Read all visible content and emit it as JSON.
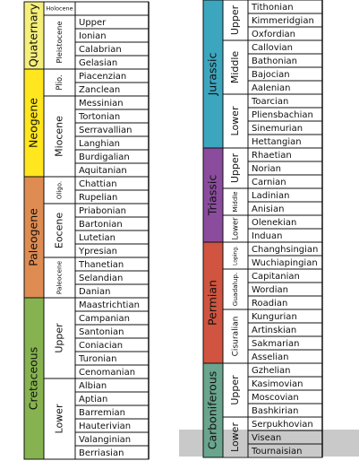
{
  "tables": [
    {
      "periods": [
        {
          "name": "Quaternary",
          "color": "#f5ef7a",
          "epochs": [
            {
              "name": "Holocene",
              "stages": []
            },
            {
              "name": "Pleistocene",
              "stages": [
                "Upper",
                "Ionian",
                "Calabrian",
                "Gelasian"
              ]
            }
          ]
        },
        {
          "name": "Neogene",
          "color": "#ffe61e",
          "epochs": [
            {
              "name": "Plio.",
              "stages": [
                "Piacenzian",
                "Zanclean"
              ]
            },
            {
              "name": "Miocene",
              "stages": [
                "Messinian",
                "Tortonian",
                "Serravallian",
                "Langhian",
                "Burdigalian",
                "Aquitanian"
              ]
            }
          ]
        },
        {
          "name": "Paleogene",
          "color": "#df8c52",
          "epochs": [
            {
              "name": "Oligo.",
              "stages": [
                "Chattian",
                "Rupelian"
              ]
            },
            {
              "name": "Eocene",
              "stages": [
                "Priabonian",
                "Bartonian",
                "Lutetian",
                "Ypresian"
              ]
            },
            {
              "name": "Paleocene",
              "stages": [
                "Thanetian",
                "Selandian",
                "Danian"
              ]
            }
          ]
        },
        {
          "name": "Cretaceous",
          "color": "#86b34f",
          "epochs": [
            {
              "name": "Upper",
              "stages": [
                "Maastrichtian",
                "Campanian",
                "Santonian",
                "Coniacian",
                "Turonian",
                "Cenomanian"
              ]
            },
            {
              "name": "Lower",
              "stages": [
                "Albian",
                "Aptian",
                "Barremian",
                "Hauterivian",
                "Valanginian",
                "Berriasian"
              ]
            }
          ]
        }
      ]
    },
    {
      "periods": [
        {
          "name": "Jurassic",
          "color": "#3da6bf",
          "epochs": [
            {
              "name": "Upper",
              "stages": [
                "Tithonian",
                "Kimmeridgian",
                "Oxfordian"
              ]
            },
            {
              "name": "Middle",
              "stages": [
                "Callovian",
                "Bathonian",
                "Bajocian",
                "Aalenian"
              ]
            },
            {
              "name": "Lower",
              "stages": [
                "Toarcian",
                "Pliensbachian",
                "Sinemurian",
                "Hettangian"
              ]
            }
          ]
        },
        {
          "name": "Triassic",
          "color": "#8b4c9e",
          "epochs": [
            {
              "name": "Upper",
              "stages": [
                "Rhaetian",
                "Norian",
                "Carnian"
              ]
            },
            {
              "name": "Middle",
              "stages": [
                "Ladinian",
                "Anisian"
              ]
            },
            {
              "name": "Lower",
              "stages": [
                "Olenekian",
                "Induan"
              ]
            }
          ]
        },
        {
          "name": "Permian",
          "color": "#d0543f",
          "epochs": [
            {
              "name": "Loping.",
              "stages": [
                "Changhsingian",
                "Wuchiapingian"
              ]
            },
            {
              "name": "Guadalup.",
              "stages": [
                "Capitanian",
                "Wordian",
                "Roadian"
              ]
            },
            {
              "name": "Cisuralian",
              "stages": [
                "Kungurian",
                "Artinskian",
                "Sakmarian",
                "Asselian"
              ]
            }
          ]
        },
        {
          "name": "Carboniferous",
          "color": "#6aa58e",
          "epochs": [
            {
              "name": "Upper",
              "stages": [
                "Gzhelian",
                "Kasimovian",
                "Moscovian",
                "Bashkirian"
              ]
            },
            {
              "name": "Lower",
              "stages": [
                "Serpukhovian",
                "Visean",
                "Tournaisian"
              ]
            }
          ]
        }
      ]
    }
  ]
}
